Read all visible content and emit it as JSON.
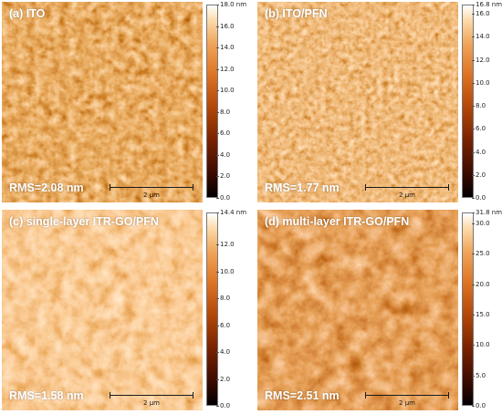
{
  "colors": {
    "low": "#000000",
    "mid": "#b54a0a",
    "high": "#ffffff"
  },
  "panels": [
    {
      "label": "(a) ITO",
      "rms": "RMS=2.08 nm",
      "scale": "2 µm",
      "ticks": [
        "18.0 nm",
        "16.0",
        "14.0",
        "12.0",
        "10.0",
        "8.0",
        "6.0",
        "4.0",
        "2.0",
        "0.0"
      ]
    },
    {
      "label": "(b) ITO/PFN",
      "rms": "RMS=1.77 nm",
      "scale": "2 µm",
      "ticks": [
        "16.8 nm",
        "16.0",
        "14.0",
        "12.0",
        "10.0",
        "8.0",
        "6.0",
        "4.0",
        "2.0",
        "0.0"
      ]
    },
    {
      "label": "(c) single-layer ITR-GO/PFN",
      "rms": "RMS=1.58 nm",
      "scale": "2 µm",
      "ticks": [
        "14.4 nm",
        "12.0",
        "10.0",
        "8.0",
        "6.0",
        "4.0",
        "2.0",
        "0.0"
      ]
    },
    {
      "label": "(d) multi-layer ITR-GO/PFN",
      "rms": "RMS=2.51 nm",
      "scale": "2 µm",
      "ticks": [
        "31.8 nm",
        "30.0",
        "25.0",
        "20.0",
        "15.0",
        "10.0",
        "5.0",
        "0.0"
      ]
    }
  ]
}
